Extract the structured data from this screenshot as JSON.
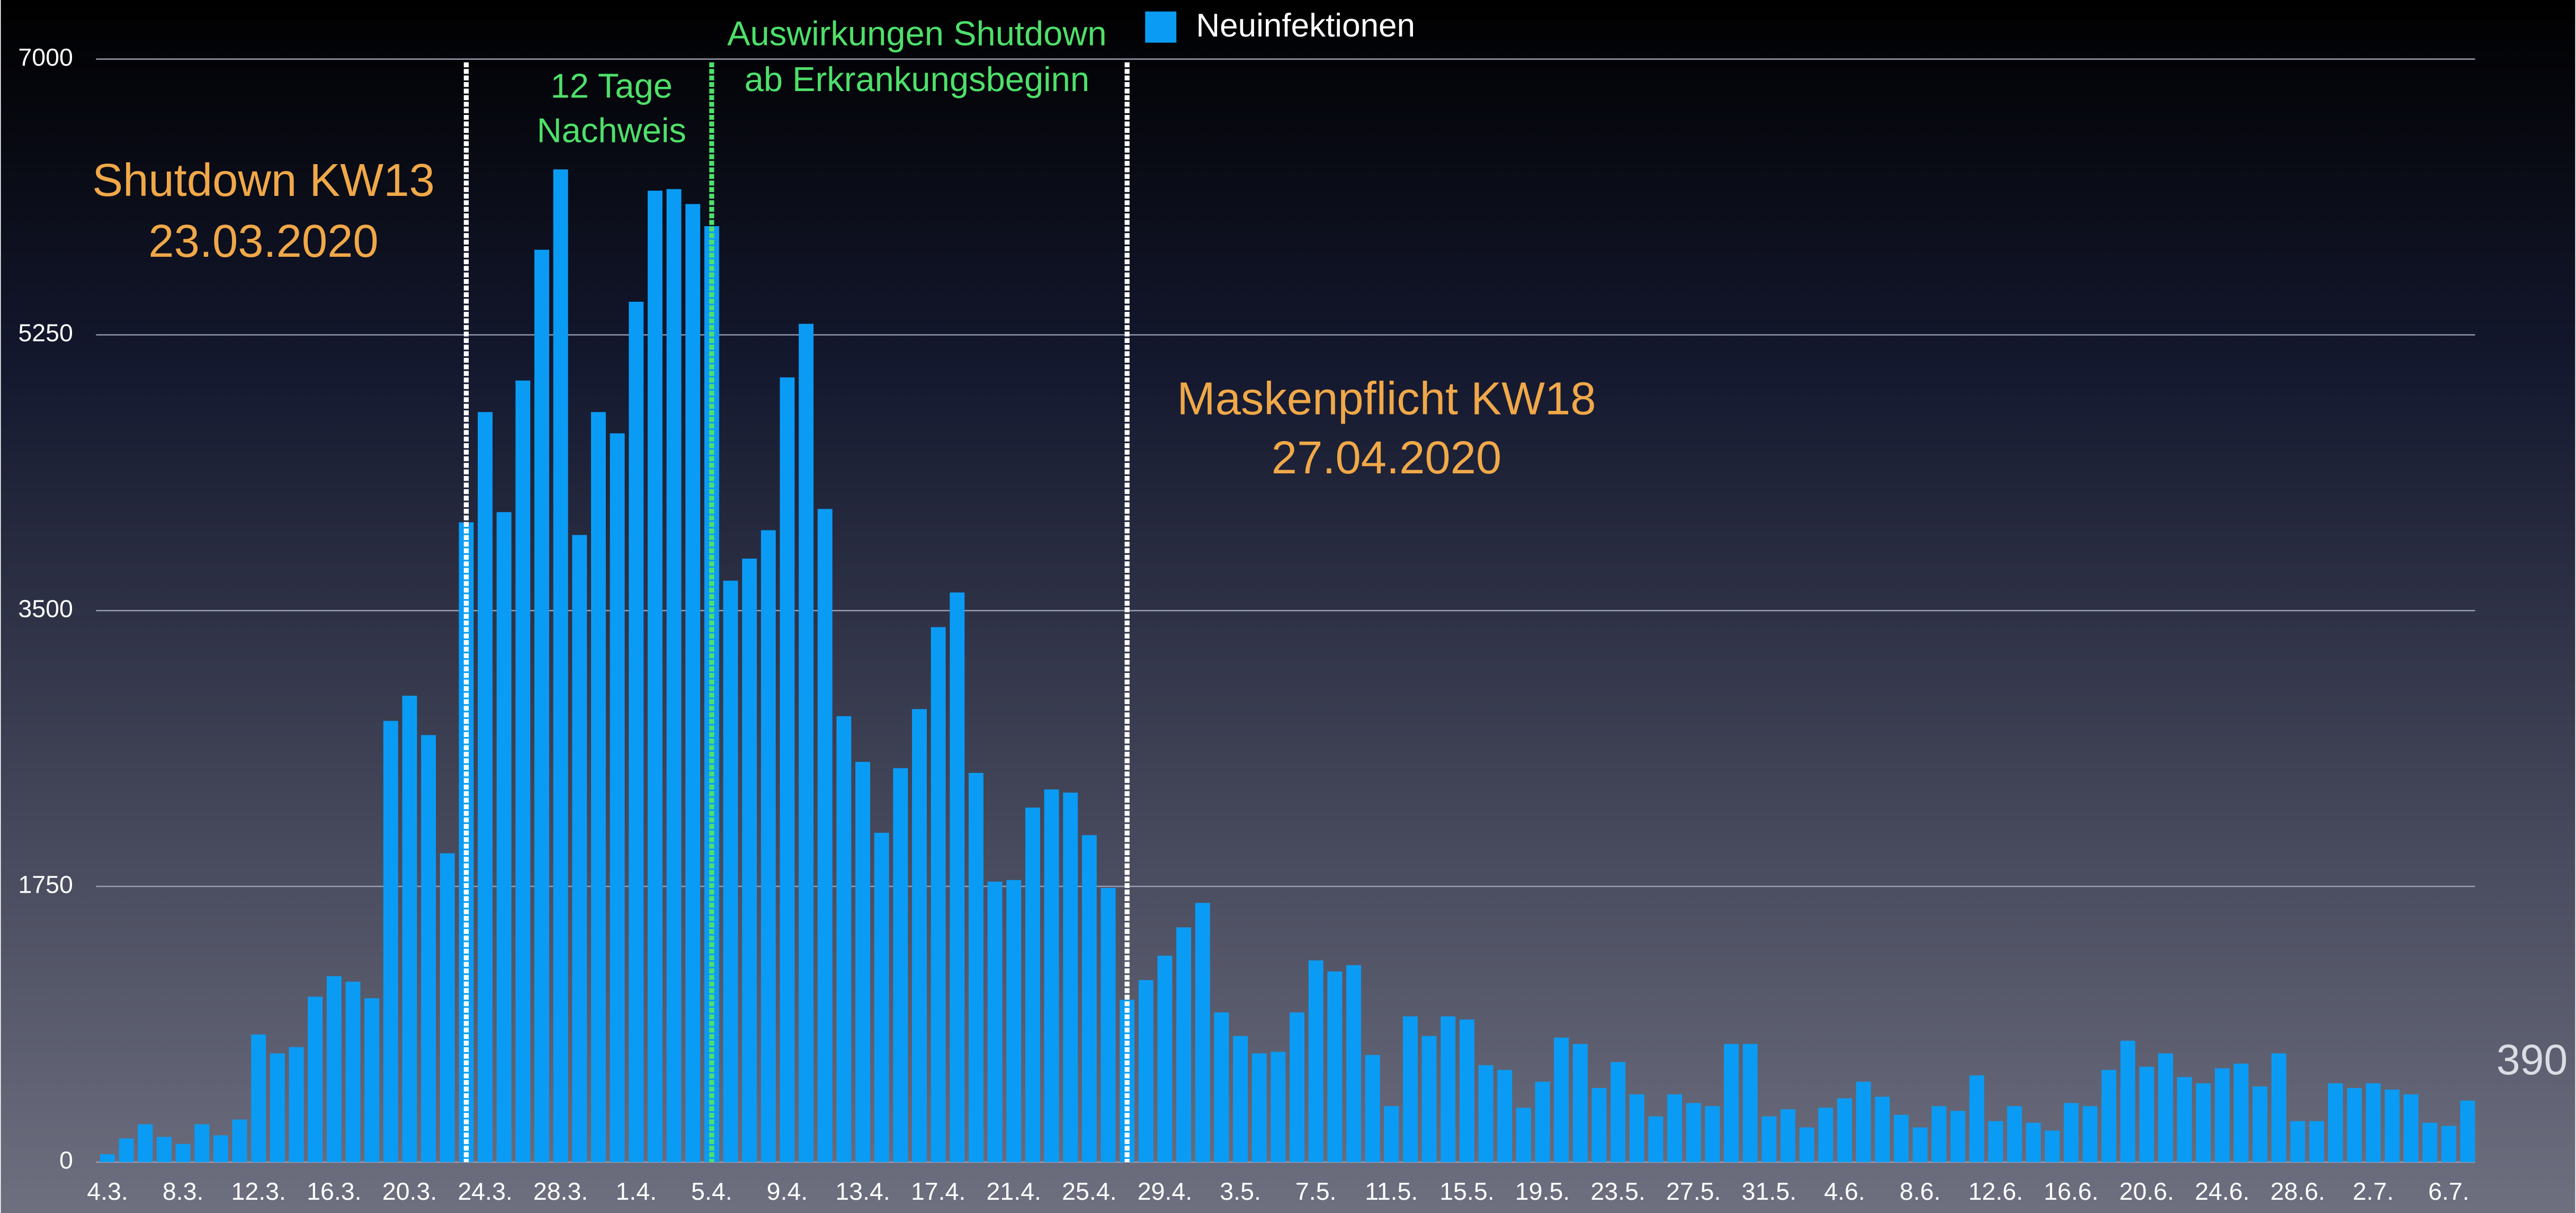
{
  "chart_data": {
    "type": "bar",
    "legend": "Neuinfektionen",
    "color": "#0a9cf5",
    "categories": [
      "4.3.",
      null,
      null,
      null,
      "8.3.",
      null,
      null,
      null,
      "12.3.",
      null,
      null,
      null,
      "16.3.",
      null,
      null,
      null,
      "20.3.",
      null,
      null,
      null,
      "24.3.",
      null,
      null,
      null,
      "28.3.",
      null,
      null,
      null,
      "1.4.",
      null,
      null,
      null,
      "5.4.",
      null,
      null,
      null,
      "9.4.",
      null,
      null,
      null,
      "13.4.",
      null,
      null,
      null,
      "17.4.",
      null,
      null,
      null,
      "21.4.",
      null,
      null,
      null,
      "25.4.",
      null,
      null,
      null,
      "29.4.",
      null,
      null,
      null,
      "3.5.",
      null,
      null,
      null,
      "7.5.",
      null,
      null,
      null,
      "11.5.",
      null,
      null,
      null,
      "15.5.",
      null,
      null,
      null,
      "19.5.",
      null,
      null,
      null,
      "23.5.",
      null,
      null,
      null,
      "27.5.",
      null,
      null,
      null,
      "31.5.",
      null,
      null,
      null,
      "4.6.",
      null,
      null,
      null,
      "8.6.",
      null,
      null,
      null,
      "12.6.",
      null,
      null,
      null,
      "16.6.",
      null,
      null,
      null,
      "20.6.",
      null,
      null,
      null,
      "24.6.",
      null,
      null,
      null,
      "28.6.",
      null,
      null,
      null,
      "2.7.",
      null,
      null,
      null,
      "6.7.",
      null
    ],
    "values": [
      50,
      150,
      240,
      160,
      115,
      240,
      170,
      270,
      810,
      690,
      730,
      1050,
      1180,
      1145,
      1040,
      2800,
      2960,
      2710,
      1960,
      4060,
      4760,
      4125,
      4960,
      5790,
      6300,
      3980,
      4760,
      4625,
      5460,
      6165,
      6175,
      6080,
      5940,
      3690,
      3830,
      4010,
      4980,
      5320,
      4145,
      2830,
      2540,
      2090,
      2500,
      2875,
      3395,
      3615,
      2470,
      1780,
      1790,
      2250,
      2365,
      2345,
      2075,
      1740,
      1030,
      1155,
      1310,
      1490,
      1645,
      950,
      800,
      690,
      700,
      950,
      1280,
      1210,
      1250,
      680,
      355,
      925,
      800,
      925,
      905,
      615,
      585,
      345,
      510,
      790,
      750,
      470,
      635,
      430,
      290,
      430,
      375,
      355,
      750,
      750,
      290,
      335,
      220,
      345,
      405,
      510,
      415,
      300,
      220,
      355,
      325,
      550,
      260,
      355,
      250,
      200,
      375,
      355,
      585,
      770,
      605,
      690,
      540,
      500,
      595,
      625,
      480,
      690,
      260,
      260,
      500,
      470,
      500,
      460,
      430,
      250,
      230,
      390
    ],
    "ylim": [
      0,
      7000
    ],
    "yticks": [
      0,
      1750,
      3500,
      5250,
      7000
    ],
    "grid": true,
    "annotations": [
      "Shutdown KW13",
      "23.03.2020",
      "12 Tage",
      "Nachweis",
      "Auswirkungen Shutdown",
      "ab Erkrankungsbeginn",
      "Maskenpflicht KW18",
      "27.04.2020"
    ]
  }
}
